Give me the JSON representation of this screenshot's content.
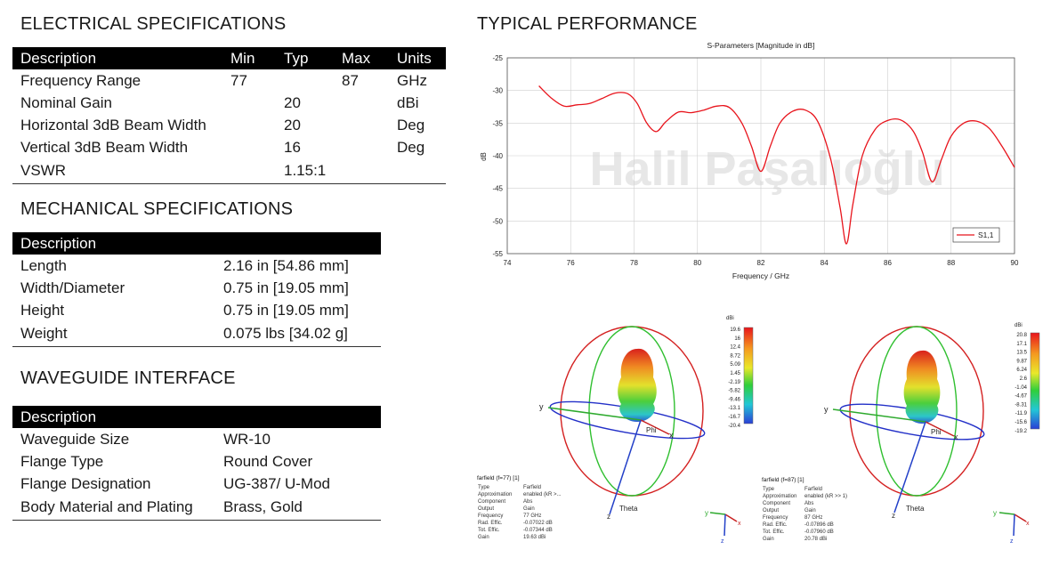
{
  "electrical": {
    "title": "ELECTRICAL SPECIFICATIONS",
    "headers": [
      "Description",
      "Min",
      "Typ",
      "Max",
      "Units"
    ],
    "rows": [
      [
        "Frequency Range",
        "77",
        "",
        "87",
        "GHz"
      ],
      [
        "Nominal Gain",
        "",
        "20",
        "",
        "dBi"
      ],
      [
        "Horizontal 3dB Beam Width",
        "",
        "20",
        "",
        "Deg"
      ],
      [
        "Vertical 3dB Beam Width",
        "",
        "16",
        "",
        "Deg"
      ],
      [
        "VSWR",
        "",
        "1.15:1",
        "",
        ""
      ]
    ]
  },
  "mechanical": {
    "title": "MECHANICAL SPECIFICATIONS",
    "header": "Description",
    "rows": [
      [
        "Length",
        "2.16 in [54.86 mm]"
      ],
      [
        "Width/Diameter",
        "0.75 in [19.05 mm]"
      ],
      [
        "Height",
        "0.75 in [19.05 mm]"
      ],
      [
        "Weight",
        "0.075 lbs [34.02 g]"
      ]
    ]
  },
  "waveguide": {
    "title": "WAVEGUIDE INTERFACE",
    "header": "Description",
    "rows": [
      [
        "Waveguide Size",
        "WR-10"
      ],
      [
        "Flange Type",
        "Round Cover"
      ],
      [
        "Flange Designation",
        "UG-387/ U-Mod"
      ],
      [
        "Body Material and Plating",
        "Brass, Gold"
      ]
    ]
  },
  "performance": {
    "title": "TYPICAL PERFORMANCE",
    "watermark": "Halil Paşalıoğlu"
  },
  "chart_data": {
    "type": "line",
    "title": "S-Parameters [Magnitude in dB]",
    "xlabel": "Frequency / GHz",
    "ylabel": "dB",
    "xlim": [
      74,
      90
    ],
    "ylim": [
      -55,
      -25
    ],
    "xticks": [
      74,
      76,
      78,
      80,
      82,
      84,
      86,
      88,
      90
    ],
    "yticks": [
      -25,
      -30,
      -35,
      -40,
      -45,
      -50,
      -55
    ],
    "grid": true,
    "legend_position": "bottom-right",
    "series": [
      {
        "name": "S1,1",
        "color": "#e8141c",
        "x": [
          75.0,
          75.4,
          75.8,
          76.2,
          76.6,
          77.0,
          77.4,
          77.8,
          78.1,
          78.4,
          78.7,
          79.0,
          79.4,
          79.8,
          80.2,
          80.6,
          81.0,
          81.4,
          81.7,
          82.0,
          82.3,
          82.6,
          83.0,
          83.4,
          83.8,
          84.2,
          84.5,
          84.7,
          84.9,
          85.2,
          85.6,
          86.0,
          86.4,
          86.8,
          87.1,
          87.4,
          87.7,
          88.0,
          88.4,
          88.8,
          89.2,
          89.6,
          90.0
        ],
        "y": [
          -29.3,
          -31.2,
          -32.4,
          -32.2,
          -32.0,
          -31.2,
          -30.4,
          -30.5,
          -32.0,
          -35.0,
          -36.3,
          -34.8,
          -33.3,
          -33.4,
          -33.0,
          -32.4,
          -32.6,
          -35.0,
          -38.5,
          -42.4,
          -38.5,
          -35.0,
          -33.2,
          -33.0,
          -34.8,
          -40.5,
          -48.0,
          -53.5,
          -47.5,
          -40.0,
          -36.0,
          -34.6,
          -34.5,
          -36.2,
          -39.5,
          -44.0,
          -40.5,
          -37.0,
          -35.0,
          -34.7,
          -35.8,
          -38.5,
          -41.8
        ]
      }
    ]
  },
  "farfield_left": {
    "colorbar": {
      "unit": "dBi",
      "ticks": [
        "19.6",
        "16",
        "12.4",
        "8.72",
        "5.09",
        "1.45",
        "-2.19",
        "-5.82",
        "-9.46",
        "-13.1",
        "-16.7",
        "-20.4"
      ]
    },
    "axes": {
      "x": "x",
      "y": "y",
      "z": "z",
      "phi": "Phi",
      "theta": "Theta"
    },
    "info_title": "farfield (f=77) [1]",
    "info_rows": [
      [
        "Type",
        "Farfield"
      ],
      [
        "Approximation",
        "enabled (kR >..."
      ],
      [
        "Component",
        "Abs"
      ],
      [
        "Output",
        "Gain"
      ],
      [
        "Frequency",
        "77 GHz"
      ],
      [
        "Rad. Effic.",
        "-0.07022 dB"
      ],
      [
        "Tot. Effic.",
        "-0.07344 dB"
      ],
      [
        "Gain",
        "19.63 dBi"
      ]
    ]
  },
  "farfield_right": {
    "colorbar": {
      "unit": "dBi",
      "ticks": [
        "20.8",
        "17.1",
        "13.5",
        "9.87",
        "6.24",
        "2.6",
        "-1.04",
        "-4.67",
        "-8.31",
        "-11.9",
        "-15.6",
        "-19.2"
      ]
    },
    "axes": {
      "x": "x",
      "y": "y",
      "z": "z",
      "phi": "Phi",
      "theta": "Theta"
    },
    "info_title": "farfield (f=87) [1]",
    "info_rows": [
      [
        "Type",
        "Farfield"
      ],
      [
        "Approximation",
        "enabled (kR >> 1)"
      ],
      [
        "Component",
        "Abs"
      ],
      [
        "Output",
        "Gain"
      ],
      [
        "Frequency",
        "87 GHz"
      ],
      [
        "Rad. Effic.",
        "-0.07896 dB"
      ],
      [
        "Tot. Effic.",
        "-0.07960 dB"
      ],
      [
        "Gain",
        "20.78 dBi"
      ]
    ]
  }
}
